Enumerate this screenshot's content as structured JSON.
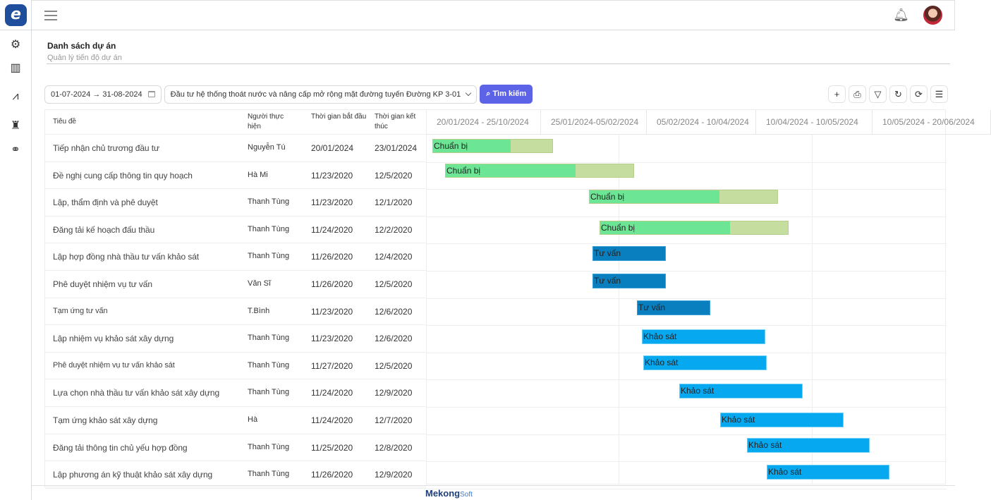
{
  "app": {
    "logo_letter": "e"
  },
  "sidebar": {
    "icons": [
      "gear-icon",
      "building-chart-icon",
      "line-chart-icon",
      "bottle-icon",
      "circles-icon"
    ]
  },
  "header": {
    "title": "Danh sách dự án",
    "subtitle": "Quản lý tiến độ dự án"
  },
  "filters": {
    "date_range": "01-07-2024 → 31-08-2024",
    "project": "Đầu tư hệ thống thoát nước và nâng cấp mở rộng mặt đường tuyến Đường KP 3-01",
    "search_label": "Tìm kiếm"
  },
  "toolbar": {
    "icons": [
      "plus-icon",
      "print-icon",
      "filter-icon",
      "reload-icon",
      "sync-icon",
      "settings-sliders-icon"
    ]
  },
  "table": {
    "columns": [
      "Tiêu đề",
      "Người thực hiện",
      "Thời gian bắt đầu",
      "Thời gian kết thúc"
    ],
    "rows": [
      [
        "Tiếp nhận chủ trương đầu tư",
        "Nguyễn Tú",
        "20/01/2024",
        "23/01/2024"
      ],
      [
        "Đề nghị cung cấp thông tin quy hoạch",
        "Hà Mi",
        "11/23/2020",
        "12/5/2020"
      ],
      [
        "Lập, thẩm định và phê duyệt",
        "Thanh Tùng",
        "11/23/2020",
        "12/1/2020"
      ],
      [
        "Đăng tải kế hoạch đấu thầu",
        "Thanh Tùng",
        "11/24/2020",
        "12/2/2020"
      ],
      [
        "Lập hợp đồng nhà thầu tư vấn khảo sát",
        "Thanh Tùng",
        "11/26/2020",
        "12/4/2020"
      ],
      [
        "Phê duyệt nhiệm vụ tư vấn",
        "Văn Sĩ",
        "11/26/2020",
        "12/5/2020"
      ],
      [
        "Tạm ứng tư vấn",
        "T.Bình",
        "11/23/2020",
        "12/6/2020"
      ],
      [
        "Lập nhiệm vụ khảo sát xây dựng",
        "Thanh Tùng",
        "11/23/2020",
        "12/6/2020"
      ],
      [
        "Phê duyệt nhiệm vụ tư vấn khảo sát",
        "Thanh Tùng",
        "11/27/2020",
        "12/5/2020"
      ],
      [
        "Lựa chọn nhà thầu tư vấn khảo sát xây dựng",
        "Thanh Tùng",
        "11/24/2020",
        "12/9/2020"
      ],
      [
        "Tạm ứng khảo sát xây dựng",
        "Hà",
        "11/24/2020",
        "12/7/2020"
      ],
      [
        "Đăng tải thông tin chủ yếu hợp đồng",
        "Thanh Tùng",
        "11/25/2020",
        "12/8/2020"
      ],
      [
        "Lập phương án kỹ thuật khảo sát xây dựng",
        "Thanh Tùng",
        "11/26/2020",
        "12/9/2020"
      ]
    ]
  },
  "gantt": {
    "periods": [
      "20/01/2024 - 25/10/2024",
      "25/01/2024-05/02/2024",
      "05/02/2024 - 10/04/2024",
      "10/04/2024 - 10/05/2024",
      "10/05/2024 - 20/06/2024"
    ],
    "colors": {
      "prepare": "#6ce694",
      "prepare_rest": "#c5dea0",
      "consult": "#0a7fbf",
      "survey": "#06a8ef"
    },
    "bars": [
      {
        "label": "Chuẩn bị",
        "type": "prepare",
        "progress": 65
      },
      {
        "label": "Chuẩn bị",
        "type": "prepare",
        "progress": 69
      },
      {
        "label": "Chuẩn bị",
        "type": "prepare",
        "progress": 69
      },
      {
        "label": "Chuẩn bị",
        "type": "prepare",
        "progress": 69
      },
      {
        "label": "Tư vấn",
        "type": "consult",
        "progress": 100
      },
      {
        "label": "Tư vấn",
        "type": "consult",
        "progress": 100
      },
      {
        "label": "Tư vấn",
        "type": "consult",
        "progress": 100
      },
      {
        "label": "Khảo sát",
        "type": "survey",
        "progress": 100
      },
      {
        "label": "Khảo sát",
        "type": "survey",
        "progress": 100
      },
      {
        "label": "Khảo sát",
        "type": "survey",
        "progress": 100
      },
      {
        "label": "Khảo sát",
        "type": "survey",
        "progress": 100
      },
      {
        "label": "Khảo sát",
        "type": "survey",
        "progress": 100
      },
      {
        "label": "Khảo sát",
        "type": "survey",
        "progress": 100
      }
    ]
  },
  "footer": {
    "brand_main": "Mekong",
    "brand_sub": "Soft"
  }
}
